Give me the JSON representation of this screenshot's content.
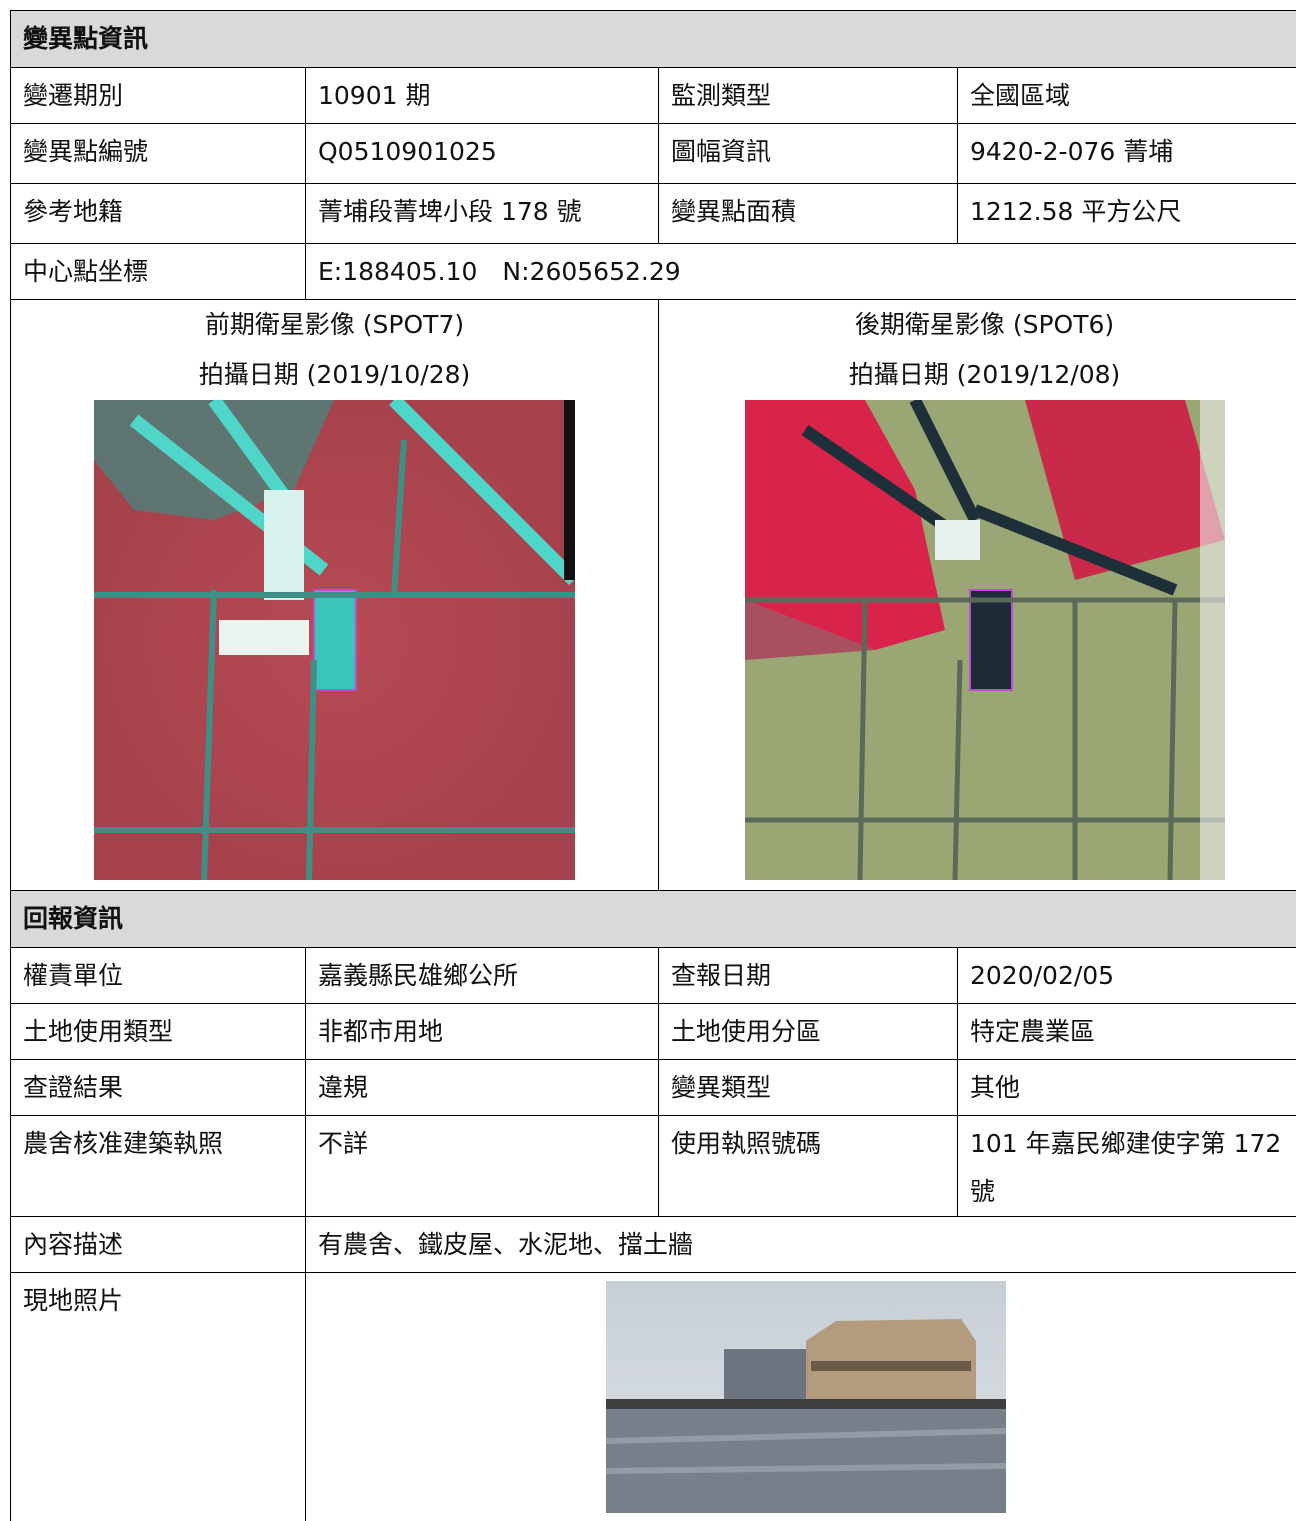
{
  "section1": {
    "title": "變異點資訊",
    "rows": [
      [
        "變遷期別",
        "10901 期",
        "監測類型",
        "全國區域"
      ],
      [
        "變異點編號",
        "Q0510901025",
        "圖幅資訊",
        "9420-2-076 菁埔"
      ],
      [
        "參考地籍",
        "菁埔段菁埤小段 178 號",
        "變異點面積",
        "1212.58 平方公尺"
      ]
    ],
    "center": [
      "中心點坐標",
      "E:188405.10　N:2605652.29"
    ]
  },
  "images": [
    {
      "caption": "前期衛星影像 (SPOT7)",
      "date": "拍攝日期 (2019/10/28)"
    },
    {
      "caption": "後期衛星影像 (SPOT6)",
      "date": "拍攝日期 (2019/12/08)"
    }
  ],
  "section2": {
    "title": "回報資訊",
    "rows": [
      [
        "權責單位",
        "嘉義縣民雄鄉公所",
        "查報日期",
        "2020/02/05"
      ],
      [
        "土地使用類型",
        "非都市用地",
        "土地使用分區",
        "特定農業區"
      ],
      [
        "查證結果",
        "違規",
        "變異類型",
        "其他"
      ],
      [
        "農舍核准建築執照",
        "不詳",
        "使用執照號碼",
        "101 年嘉民鄉建使字第 172 號"
      ]
    ],
    "description": [
      "內容描述",
      "有農舍、鐵皮屋、水泥地、擋土牆"
    ],
    "photo_label": "現地照片"
  }
}
